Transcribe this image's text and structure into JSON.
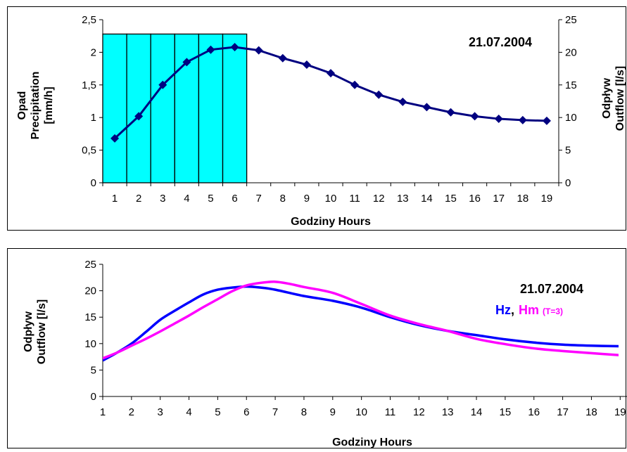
{
  "chart_data": [
    {
      "type": "bar+line",
      "date_label": "21.07.2004",
      "xlabel": "Godziny Hours",
      "ylabel_left": [
        "Opad",
        "Precipitation",
        "[mm/h]"
      ],
      "ylabel_right": [
        "Odpływ",
        "Outflow [l/s]"
      ],
      "x_categories": [
        "1",
        "2",
        "3",
        "4",
        "5",
        "6",
        "7",
        "8",
        "9",
        "10",
        "11",
        "12",
        "13",
        "14",
        "15",
        "16",
        "17",
        "18",
        "19"
      ],
      "left_axis": {
        "range": [
          0,
          2.5
        ],
        "ticks": [
          "0",
          "0,5",
          "1",
          "1,5",
          "2",
          "2,5"
        ]
      },
      "right_axis": {
        "range": [
          0,
          25
        ],
        "ticks": [
          "0",
          "5",
          "10",
          "15",
          "20",
          "25"
        ]
      },
      "precipitation_bars": {
        "hours": [
          1,
          2,
          3,
          4,
          5,
          6
        ],
        "values": [
          2.28,
          2.28,
          2.28,
          2.28,
          2.28,
          2.28
        ],
        "color": "#00FFFF"
      },
      "outflow_series": {
        "x": [
          1,
          2,
          3,
          4,
          5,
          6,
          7,
          8,
          9,
          10,
          11,
          12,
          13,
          14,
          15,
          16,
          17,
          18,
          19
        ],
        "values": [
          6.8,
          10.2,
          15.0,
          18.5,
          20.4,
          20.8,
          20.3,
          19.1,
          18.1,
          16.8,
          15.0,
          13.5,
          12.4,
          11.6,
          10.8,
          10.2,
          9.8,
          9.6,
          9.5
        ],
        "color": "#000080"
      }
    },
    {
      "type": "line",
      "date_label": "21.07.2004",
      "legend": {
        "hz": "Hz",
        "sep": ",",
        "hm": "Hm",
        "t": "(T=3)"
      },
      "xlabel": "Godziny Hours",
      "ylabel": [
        "Odpływ",
        "Outflow [l/s]"
      ],
      "x_ticks": [
        "1",
        "2",
        "3",
        "4",
        "5",
        "6",
        "7",
        "8",
        "9",
        "10",
        "11",
        "12",
        "13",
        "14",
        "15",
        "16",
        "17",
        "18",
        "19"
      ],
      "y_axis": {
        "range": [
          0,
          25
        ],
        "ticks": [
          "0",
          "5",
          "10",
          "15",
          "20",
          "25"
        ]
      },
      "series": [
        {
          "name": "Hz",
          "color": "#0000FF",
          "x": [
            1,
            1.5,
            2,
            2.5,
            3,
            3.5,
            4,
            4.5,
            5,
            5.5,
            6,
            6.5,
            7,
            8,
            9,
            10,
            11,
            12,
            13,
            14,
            15,
            16,
            17,
            18,
            19
          ],
          "values": [
            6.8,
            8.3,
            10.0,
            12.2,
            14.5,
            16.2,
            17.8,
            19.3,
            20.2,
            20.6,
            20.8,
            20.6,
            20.2,
            19.0,
            18.1,
            16.8,
            15.0,
            13.5,
            12.4,
            11.6,
            10.8,
            10.2,
            9.8,
            9.6,
            9.5
          ]
        },
        {
          "name": "Hm",
          "color": "#FF00FF",
          "x": [
            1,
            1.5,
            2,
            2.5,
            3,
            3.5,
            4,
            4.5,
            5,
            5.5,
            6,
            6.5,
            7,
            7.5,
            8,
            9,
            10,
            11,
            12,
            13,
            14,
            15,
            16,
            17,
            18,
            19
          ],
          "values": [
            7.2,
            8.3,
            9.6,
            10.9,
            12.3,
            13.8,
            15.3,
            16.9,
            18.4,
            19.9,
            21.0,
            21.5,
            21.7,
            21.3,
            20.7,
            19.6,
            17.5,
            15.3,
            13.7,
            12.4,
            10.9,
            9.9,
            9.1,
            8.6,
            8.2,
            7.8
          ]
        }
      ]
    }
  ]
}
